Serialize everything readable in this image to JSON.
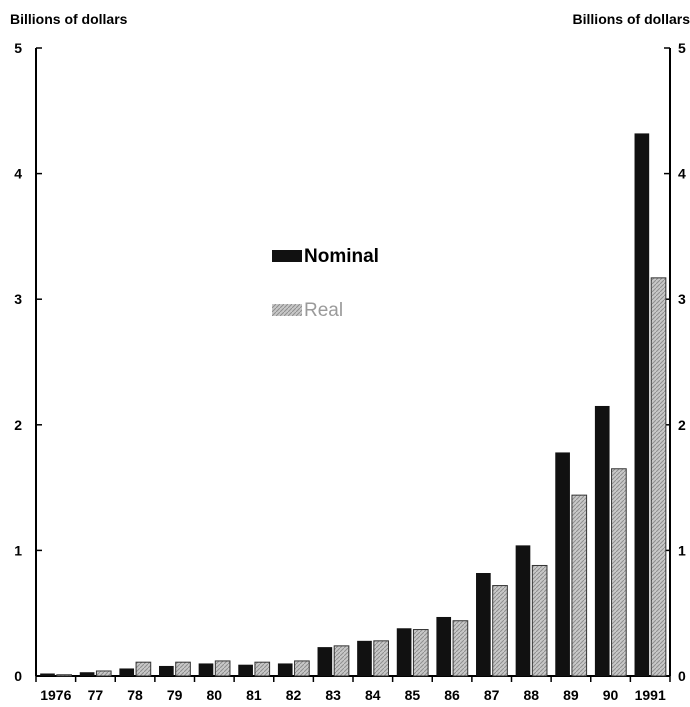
{
  "chart_data": {
    "type": "bar",
    "title": "",
    "ylabel_left": "Billions of dollars",
    "ylabel_right": "Billions of dollars",
    "xlabel": "",
    "ylim": [
      0,
      5
    ],
    "y_ticks": [
      "0",
      "1",
      "2",
      "3",
      "4",
      "5"
    ],
    "categories": [
      "1976",
      "77",
      "78",
      "79",
      "80",
      "81",
      "82",
      "83",
      "84",
      "85",
      "86",
      "87",
      "88",
      "89",
      "90",
      "1991"
    ],
    "series": [
      {
        "name": "Nominal",
        "color": "#111111",
        "values": [
          0.02,
          0.03,
          0.06,
          0.08,
          0.1,
          0.09,
          0.1,
          0.23,
          0.28,
          0.38,
          0.47,
          0.82,
          1.04,
          1.78,
          2.15,
          4.32
        ]
      },
      {
        "name": "Real",
        "color": "#bdbdbd",
        "values": [
          0.01,
          0.04,
          0.11,
          0.11,
          0.12,
          0.11,
          0.12,
          0.24,
          0.28,
          0.37,
          0.44,
          0.72,
          0.88,
          1.44,
          1.65,
          3.17
        ]
      }
    ],
    "legend_position": "center",
    "grid": false
  }
}
